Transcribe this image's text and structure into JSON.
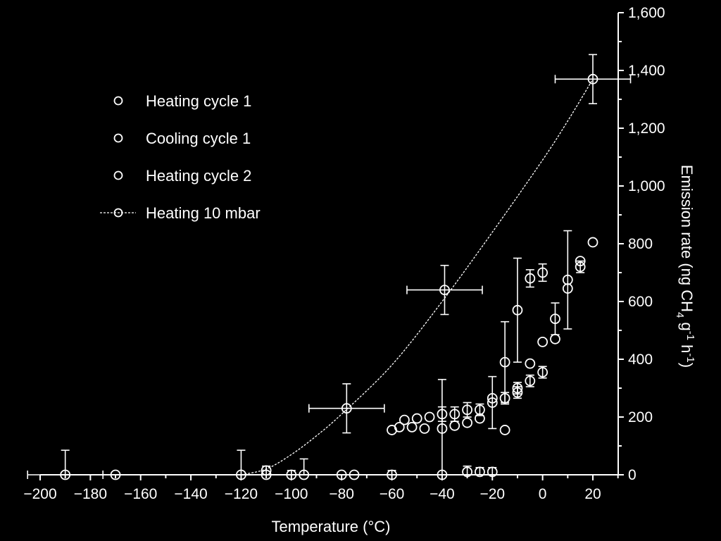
{
  "chart_data": {
    "type": "scatter",
    "xlabel": "Temperature  (°C)",
    "ylabel": "Emission rate (ng CH4 g-1 h-1)",
    "xlim": [
      -200,
      30
    ],
    "ylim": [
      0,
      1600
    ],
    "x_ticks": [
      -200,
      -180,
      -160,
      -140,
      -120,
      -100,
      -80,
      -60,
      -40,
      -20,
      0,
      20
    ],
    "x_tick_labels": [
      "−200",
      "−180",
      "−160",
      "−140",
      "−120",
      "−100",
      "−80",
      "−60",
      "−40",
      "−20",
      "0",
      "20"
    ],
    "y_ticks": [
      0,
      200,
      400,
      600,
      800,
      1000,
      1200,
      1400,
      1600
    ],
    "y_tick_labels": [
      "0",
      "200",
      "400",
      "600",
      "800",
      "1,000",
      "1,200",
      "1,400",
      "1,600"
    ],
    "y_axis_side": "right",
    "grid": false,
    "legend_position": "top-left",
    "colors": {
      "background": "#000000",
      "foreground": "#ffffff"
    },
    "legend": [
      {
        "label": "Heating cycle 1",
        "marker": "circle"
      },
      {
        "label": "Cooling cycle 1",
        "marker": "circle"
      },
      {
        "label": "Heating cycle 2",
        "marker": "circle"
      },
      {
        "label": "Heating 10 mbar",
        "marker": "circle-dashed-line"
      }
    ],
    "series": [
      {
        "name": "Heating cycle 1",
        "points": [
          {
            "x": -190,
            "y": 0,
            "y_err_hi": 85,
            "x_err": 10
          },
          {
            "x": -120,
            "y": 0,
            "y_err_hi": 85
          },
          {
            "x": -95,
            "y": 0,
            "y_err_hi": 55
          },
          {
            "x": -40,
            "y": 0,
            "y_err_hi": 0
          },
          {
            "x": -30,
            "y": 10,
            "y_err": 20
          },
          {
            "x": -25,
            "y": 10,
            "y_err": 15
          },
          {
            "x": -20,
            "y": 10,
            "y_err": 15
          },
          {
            "x": -15,
            "y": 390,
            "y_err": 140
          },
          {
            "x": -10,
            "y": 570,
            "y_err": 180
          },
          {
            "x": 10,
            "y": 675,
            "y_err": 170
          }
        ]
      },
      {
        "name": "Cooling cycle 1",
        "points": [
          {
            "x": -170,
            "y": 0
          },
          {
            "x": -110,
            "y": 0
          },
          {
            "x": -80,
            "y": 0
          },
          {
            "x": -60,
            "y": 0,
            "y_err": 15
          },
          {
            "x": -40,
            "y": 160,
            "y_err": 170
          },
          {
            "x": -35,
            "y": 170
          },
          {
            "x": -30,
            "y": 180
          },
          {
            "x": -25,
            "y": 195
          },
          {
            "x": -20,
            "y": 250,
            "y_err": 90
          },
          {
            "x": -15,
            "y": 155
          },
          {
            "x": -10,
            "y": 285,
            "y_err": 20
          },
          {
            "x": -5,
            "y": 325,
            "y_err": 20
          },
          {
            "x": 0,
            "y": 355,
            "y_err": 20
          },
          {
            "x": 5,
            "y": 470
          },
          {
            "x": 10,
            "y": 645
          },
          {
            "x": 15,
            "y": 720,
            "y_err": 20
          }
        ]
      },
      {
        "name": "Heating cycle 2",
        "points": [
          {
            "x": -100,
            "y": 0,
            "y_err": 15
          },
          {
            "x": -75,
            "y": 0
          },
          {
            "x": -60,
            "y": 155
          },
          {
            "x": -57,
            "y": 165
          },
          {
            "x": -55,
            "y": 190
          },
          {
            "x": -52,
            "y": 165
          },
          {
            "x": -50,
            "y": 195
          },
          {
            "x": -47,
            "y": 160
          },
          {
            "x": -45,
            "y": 200
          },
          {
            "x": -40,
            "y": 210,
            "y_err": 25
          },
          {
            "x": -35,
            "y": 210,
            "y_err": 25
          },
          {
            "x": -30,
            "y": 225,
            "y_err": 25
          },
          {
            "x": -25,
            "y": 225,
            "y_err": 20
          },
          {
            "x": -20,
            "y": 265
          },
          {
            "x": -15,
            "y": 265,
            "y_err": 20
          },
          {
            "x": -10,
            "y": 300,
            "y_err": 20
          },
          {
            "x": -5,
            "y": 385
          },
          {
            "x": -5,
            "y": 680,
            "y_err": 30
          },
          {
            "x": 0,
            "y": 460
          },
          {
            "x": 0,
            "y": 700,
            "y_err": 30
          },
          {
            "x": 5,
            "y": 540,
            "y_err": 55
          },
          {
            "x": 15,
            "y": 740
          },
          {
            "x": 20,
            "y": 805
          }
        ]
      },
      {
        "name": "Heating 10 mbar",
        "line": "dashed",
        "curve_points": [
          {
            "x": -120,
            "y": 0
          },
          {
            "x": -110,
            "y": 20
          },
          {
            "x": -100,
            "y": 70
          },
          {
            "x": -90,
            "y": 135
          },
          {
            "x": -80,
            "y": 210
          },
          {
            "x": -60,
            "y": 380
          },
          {
            "x": -40,
            "y": 600
          },
          {
            "x": -20,
            "y": 840
          },
          {
            "x": 0,
            "y": 1090
          },
          {
            "x": 10,
            "y": 1225
          },
          {
            "x": 20,
            "y": 1370
          }
        ],
        "points": [
          {
            "x": -110,
            "y": 15,
            "y_err": 15
          },
          {
            "x": -78,
            "y": 230,
            "y_err": 85,
            "x_err": 10
          },
          {
            "x": -39,
            "y": 640,
            "y_err": 85,
            "x_err": 10
          },
          {
            "x": 20,
            "y": 1370,
            "y_err": 85,
            "x_err": 10
          }
        ]
      }
    ]
  }
}
